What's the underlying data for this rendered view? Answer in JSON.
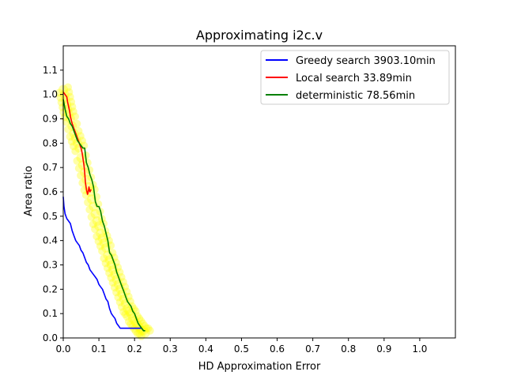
{
  "chart_data": {
    "type": "line",
    "title": "Approximating i2c.v",
    "xlabel": "HD Approximation Error",
    "ylabel": "Area ratio",
    "xlim": [
      0,
      1.1
    ],
    "ylim": [
      0,
      1.2
    ],
    "xticks": [
      0.0,
      0.1,
      0.2,
      0.3,
      0.4,
      0.5,
      0.6,
      0.7,
      0.8,
      0.9,
      1.0
    ],
    "xtick_labels": [
      "0.0",
      "0.1",
      "0.2",
      "0.3",
      "0.4",
      "0.5",
      "0.6",
      "0.7",
      "0.8",
      "0.9",
      "1.0"
    ],
    "yticks": [
      0.0,
      0.1,
      0.2,
      0.3,
      0.4,
      0.5,
      0.6,
      0.7,
      0.8,
      0.9,
      1.0,
      1.1
    ],
    "ytick_labels": [
      "0.0",
      "0.1",
      "0.2",
      "0.3",
      "0.4",
      "0.5",
      "0.6",
      "0.7",
      "0.8",
      "0.9",
      "1.0",
      "1.1"
    ],
    "grid": false,
    "legend_position": "top-right",
    "series": [
      {
        "name": "Greedy search 3903.10min",
        "color": "#0000ff",
        "x": [
          0.0,
          0.002,
          0.005,
          0.01,
          0.015,
          0.02,
          0.025,
          0.03,
          0.035,
          0.04,
          0.045,
          0.05,
          0.055,
          0.06,
          0.065,
          0.07,
          0.075,
          0.08,
          0.085,
          0.09,
          0.095,
          0.1,
          0.105,
          0.11,
          0.115,
          0.12,
          0.125,
          0.13,
          0.135,
          0.14,
          0.145,
          0.15,
          0.155,
          0.16,
          0.17,
          0.18,
          0.19,
          0.2,
          0.21,
          0.22,
          0.225,
          0.228
        ],
        "y": [
          0.58,
          0.54,
          0.51,
          0.49,
          0.48,
          0.47,
          0.44,
          0.42,
          0.4,
          0.39,
          0.38,
          0.36,
          0.35,
          0.33,
          0.31,
          0.3,
          0.28,
          0.27,
          0.26,
          0.25,
          0.24,
          0.22,
          0.21,
          0.2,
          0.18,
          0.16,
          0.15,
          0.12,
          0.1,
          0.09,
          0.08,
          0.06,
          0.05,
          0.04,
          0.04,
          0.04,
          0.04,
          0.04,
          0.04,
          0.04,
          0.03,
          0.03
        ]
      },
      {
        "name": "Local search 33.89min",
        "color": "#ff0000",
        "x": [
          0.0,
          0.005,
          0.01,
          0.012,
          0.015,
          0.018,
          0.02,
          0.025,
          0.03,
          0.035,
          0.04,
          0.045,
          0.05,
          0.053,
          0.055,
          0.058,
          0.06,
          0.062,
          0.065,
          0.068,
          0.07,
          0.072,
          0.075,
          0.078
        ],
        "y": [
          1.01,
          1.0,
          0.99,
          0.97,
          0.95,
          0.93,
          0.91,
          0.88,
          0.86,
          0.84,
          0.82,
          0.8,
          0.78,
          0.76,
          0.74,
          0.71,
          0.68,
          0.64,
          0.61,
          0.59,
          0.6,
          0.62,
          0.6,
          0.61
        ]
      },
      {
        "name": "deterministic 78.56min",
        "color": "#008000",
        "x": [
          0.0,
          0.005,
          0.01,
          0.015,
          0.02,
          0.025,
          0.03,
          0.035,
          0.04,
          0.045,
          0.05,
          0.055,
          0.06,
          0.065,
          0.07,
          0.075,
          0.08,
          0.085,
          0.09,
          0.095,
          0.1,
          0.105,
          0.11,
          0.115,
          0.12,
          0.125,
          0.13,
          0.135,
          0.14,
          0.145,
          0.15,
          0.155,
          0.16,
          0.165,
          0.17,
          0.175,
          0.18,
          0.185,
          0.19,
          0.195,
          0.2,
          0.205,
          0.21,
          0.215,
          0.22,
          0.225,
          0.23
        ],
        "y": [
          0.98,
          0.94,
          0.91,
          0.9,
          0.88,
          0.87,
          0.85,
          0.83,
          0.81,
          0.8,
          0.79,
          0.78,
          0.78,
          0.72,
          0.7,
          0.67,
          0.65,
          0.62,
          0.56,
          0.54,
          0.54,
          0.52,
          0.48,
          0.46,
          0.43,
          0.4,
          0.35,
          0.34,
          0.32,
          0.3,
          0.27,
          0.25,
          0.23,
          0.21,
          0.19,
          0.17,
          0.15,
          0.14,
          0.13,
          0.11,
          0.1,
          0.08,
          0.06,
          0.05,
          0.04,
          0.03,
          0.03
        ]
      }
    ],
    "scatter": {
      "color": "#ffff00",
      "opacity": 0.35,
      "x": [
        0.0,
        0.003,
        0.006,
        0.009,
        0.012,
        0.015,
        0.02,
        0.025,
        0.03,
        0.035,
        0.04,
        0.045,
        0.05,
        0.055,
        0.06,
        0.065,
        0.07,
        0.075,
        0.08,
        0.085,
        0.09,
        0.095,
        0.1,
        0.105,
        0.11,
        0.115,
        0.12,
        0.125,
        0.13,
        0.135,
        0.14,
        0.145,
        0.15,
        0.155,
        0.16,
        0.165,
        0.17,
        0.175,
        0.18,
        0.185,
        0.19,
        0.195,
        0.2,
        0.205,
        0.21,
        0.215,
        0.22,
        0.225,
        0.23
      ],
      "y": [
        1.02,
        1.0,
        0.98,
        0.96,
        0.94,
        0.92,
        0.9,
        0.87,
        0.84,
        0.82,
        0.8,
        0.78,
        0.74,
        0.71,
        0.68,
        0.65,
        0.62,
        0.6,
        0.57,
        0.54,
        0.51,
        0.48,
        0.46,
        0.43,
        0.41,
        0.39,
        0.37,
        0.34,
        0.32,
        0.3,
        0.28,
        0.26,
        0.24,
        0.22,
        0.2,
        0.18,
        0.16,
        0.14,
        0.12,
        0.11,
        0.1,
        0.08,
        0.07,
        0.06,
        0.05,
        0.04,
        0.03,
        0.03,
        0.02
      ]
    }
  }
}
